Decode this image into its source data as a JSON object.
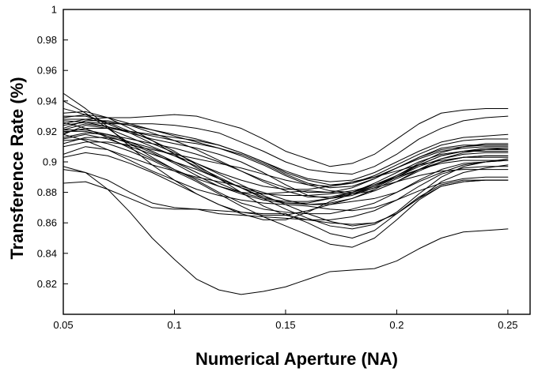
{
  "chart_data": {
    "type": "line",
    "title": "",
    "xlabel": "Numerical Aperture (NA)",
    "ylabel": "Transference Rate (%)",
    "xlim": [
      0.05,
      0.26
    ],
    "ylim": [
      0.8,
      1.0
    ],
    "grid": false,
    "legend": "none",
    "x_ticks": [
      0.05,
      0.1,
      0.15,
      0.2,
      0.25
    ],
    "x_tick_labels": [
      "0.05",
      "0.1",
      "0.15",
      "0.2",
      "0.25"
    ],
    "y_ticks": [
      0.82,
      0.84,
      0.86,
      0.88,
      0.9,
      0.92,
      0.94,
      0.96,
      0.98,
      1.0
    ],
    "y_tick_labels": [
      "0.82",
      "0.84",
      "0.86",
      "0.88",
      "0.9",
      "0.92",
      "0.94",
      "0.96",
      "0.98",
      "1"
    ],
    "x": [
      0.05,
      0.06,
      0.07,
      0.08,
      0.09,
      0.1,
      0.11,
      0.12,
      0.13,
      0.14,
      0.15,
      0.16,
      0.17,
      0.18,
      0.19,
      0.2,
      0.21,
      0.22,
      0.23,
      0.24,
      0.25
    ],
    "series": [
      {
        "values": [
          0.897,
          0.893,
          0.882,
          0.867,
          0.85,
          0.836,
          0.823,
          0.816,
          0.813,
          0.815,
          0.818,
          0.823,
          0.828,
          0.829,
          0.83,
          0.835,
          0.843,
          0.85,
          0.854,
          0.855,
          0.856
        ]
      },
      {
        "values": [
          0.886,
          0.887,
          0.882,
          0.876,
          0.87,
          0.869,
          0.869,
          0.866,
          0.865,
          0.864,
          0.863,
          0.862,
          0.86,
          0.859,
          0.86,
          0.866,
          0.876,
          0.884,
          0.887,
          0.888,
          0.888
        ]
      },
      {
        "values": [
          0.895,
          0.893,
          0.888,
          0.88,
          0.873,
          0.87,
          0.869,
          0.868,
          0.867,
          0.866,
          0.866,
          0.86,
          0.853,
          0.85,
          0.855,
          0.866,
          0.877,
          0.885,
          0.888,
          0.888,
          0.888
        ]
      },
      {
        "values": [
          0.925,
          0.928,
          0.929,
          0.929,
          0.93,
          0.931,
          0.93,
          0.926,
          0.922,
          0.915,
          0.907,
          0.902,
          0.897,
          0.899,
          0.905,
          0.915,
          0.925,
          0.932,
          0.934,
          0.935,
          0.935
        ]
      },
      {
        "values": [
          0.927,
          0.926,
          0.925,
          0.925,
          0.925,
          0.924,
          0.922,
          0.919,
          0.913,
          0.907,
          0.9,
          0.895,
          0.893,
          0.892,
          0.897,
          0.905,
          0.915,
          0.922,
          0.927,
          0.929,
          0.93
        ]
      },
      {
        "values": [
          0.945,
          0.935,
          0.923,
          0.91,
          0.898,
          0.888,
          0.879,
          0.872,
          0.867,
          0.865,
          0.865,
          0.868,
          0.872,
          0.874,
          0.876,
          0.88,
          0.887,
          0.893,
          0.898,
          0.9,
          0.901
        ]
      },
      {
        "values": [
          0.94,
          0.932,
          0.922,
          0.912,
          0.903,
          0.895,
          0.888,
          0.88,
          0.873,
          0.869,
          0.867,
          0.866,
          0.866,
          0.869,
          0.873,
          0.88,
          0.888,
          0.895,
          0.899,
          0.9,
          0.902
        ]
      },
      {
        "values": [
          0.935,
          0.931,
          0.925,
          0.919,
          0.912,
          0.906,
          0.899,
          0.892,
          0.885,
          0.878,
          0.872,
          0.866,
          0.861,
          0.858,
          0.86,
          0.866,
          0.876,
          0.887,
          0.893,
          0.896,
          0.898
        ]
      },
      {
        "values": [
          0.918,
          0.924,
          0.922,
          0.916,
          0.91,
          0.904,
          0.897,
          0.89,
          0.883,
          0.876,
          0.869,
          0.863,
          0.858,
          0.856,
          0.859,
          0.867,
          0.879,
          0.89,
          0.897,
          0.9,
          0.901
        ]
      },
      {
        "values": [
          0.93,
          0.93,
          0.926,
          0.92,
          0.914,
          0.907,
          0.898,
          0.889,
          0.88,
          0.871,
          0.865,
          0.862,
          0.862,
          0.864,
          0.868,
          0.875,
          0.884,
          0.892,
          0.896,
          0.897,
          0.897
        ]
      },
      {
        "values": [
          0.921,
          0.925,
          0.923,
          0.919,
          0.915,
          0.912,
          0.909,
          0.905,
          0.9,
          0.893,
          0.885,
          0.878,
          0.876,
          0.878,
          0.883,
          0.89,
          0.898,
          0.904,
          0.907,
          0.908,
          0.908
        ]
      },
      {
        "values": [
          0.924,
          0.926,
          0.923,
          0.92,
          0.917,
          0.914,
          0.912,
          0.909,
          0.905,
          0.899,
          0.892,
          0.886,
          0.883,
          0.884,
          0.889,
          0.896,
          0.903,
          0.909,
          0.911,
          0.911,
          0.911
        ]
      },
      {
        "values": [
          0.919,
          0.922,
          0.922,
          0.92,
          0.918,
          0.916,
          0.914,
          0.911,
          0.906,
          0.9,
          0.894,
          0.889,
          0.887,
          0.888,
          0.893,
          0.9,
          0.907,
          0.913,
          0.916,
          0.917,
          0.918
        ]
      },
      {
        "values": [
          0.928,
          0.928,
          0.926,
          0.924,
          0.921,
          0.918,
          0.915,
          0.911,
          0.906,
          0.9,
          0.893,
          0.888,
          0.885,
          0.886,
          0.891,
          0.898,
          0.905,
          0.911,
          0.914,
          0.915,
          0.915
        ]
      },
      {
        "values": [
          0.905,
          0.91,
          0.908,
          0.903,
          0.898,
          0.894,
          0.89,
          0.887,
          0.884,
          0.88,
          0.875,
          0.872,
          0.872,
          0.876,
          0.882,
          0.889,
          0.895,
          0.9,
          0.903,
          0.903,
          0.903
        ]
      },
      {
        "values": [
          0.915,
          0.918,
          0.915,
          0.91,
          0.905,
          0.9,
          0.895,
          0.889,
          0.883,
          0.877,
          0.873,
          0.873,
          0.876,
          0.88,
          0.885,
          0.89,
          0.895,
          0.899,
          0.901,
          0.901,
          0.901
        ]
      },
      {
        "values": [
          0.912,
          0.916,
          0.916,
          0.913,
          0.909,
          0.904,
          0.899,
          0.893,
          0.888,
          0.884,
          0.882,
          0.882,
          0.884,
          0.887,
          0.89,
          0.894,
          0.898,
          0.901,
          0.903,
          0.904,
          0.904
        ]
      },
      {
        "values": [
          0.92,
          0.92,
          0.917,
          0.912,
          0.906,
          0.899,
          0.891,
          0.884,
          0.88,
          0.879,
          0.88,
          0.881,
          0.88,
          0.879,
          0.881,
          0.887,
          0.895,
          0.902,
          0.906,
          0.908,
          0.909
        ]
      },
      {
        "values": [
          0.926,
          0.922,
          0.916,
          0.909,
          0.902,
          0.895,
          0.889,
          0.884,
          0.879,
          0.875,
          0.873,
          0.872,
          0.873,
          0.876,
          0.881,
          0.887,
          0.894,
          0.9,
          0.903,
          0.904,
          0.904
        ]
      },
      {
        "values": [
          0.91,
          0.913,
          0.913,
          0.911,
          0.908,
          0.905,
          0.902,
          0.899,
          0.896,
          0.892,
          0.888,
          0.885,
          0.884,
          0.886,
          0.89,
          0.896,
          0.902,
          0.907,
          0.909,
          0.91,
          0.91
        ]
      },
      {
        "values": [
          0.932,
          0.933,
          0.929,
          0.922,
          0.914,
          0.905,
          0.896,
          0.889,
          0.883,
          0.879,
          0.878,
          0.878,
          0.879,
          0.881,
          0.885,
          0.891,
          0.898,
          0.904,
          0.907,
          0.909,
          0.909
        ]
      },
      {
        "values": [
          0.918,
          0.914,
          0.908,
          0.901,
          0.894,
          0.888,
          0.882,
          0.878,
          0.875,
          0.873,
          0.872,
          0.871,
          0.869,
          0.868,
          0.87,
          0.875,
          0.881,
          0.886,
          0.889,
          0.89,
          0.89
        ]
      },
      {
        "values": [
          0.922,
          0.927,
          0.927,
          0.924,
          0.919,
          0.914,
          0.908,
          0.901,
          0.894,
          0.887,
          0.881,
          0.877,
          0.877,
          0.88,
          0.886,
          0.893,
          0.9,
          0.905,
          0.907,
          0.907,
          0.907
        ]
      },
      {
        "values": [
          0.903,
          0.906,
          0.904,
          0.899,
          0.893,
          0.886,
          0.879,
          0.872,
          0.866,
          0.862,
          0.862,
          0.867,
          0.874,
          0.879,
          0.883,
          0.887,
          0.891,
          0.894,
          0.895,
          0.895,
          0.895
        ]
      },
      {
        "values": [
          0.916,
          0.919,
          0.918,
          0.915,
          0.912,
          0.909,
          0.905,
          0.9,
          0.894,
          0.888,
          0.883,
          0.88,
          0.88,
          0.883,
          0.889,
          0.896,
          0.903,
          0.908,
          0.91,
          0.911,
          0.911
        ]
      },
      {
        "values": [
          0.914,
          0.915,
          0.912,
          0.907,
          0.901,
          0.894,
          0.887,
          0.879,
          0.871,
          0.864,
          0.858,
          0.852,
          0.846,
          0.844,
          0.85,
          0.862,
          0.875,
          0.884,
          0.887,
          0.888,
          0.888
        ]
      },
      {
        "values": [
          0.929,
          0.931,
          0.929,
          0.925,
          0.921,
          0.917,
          0.913,
          0.909,
          0.904,
          0.898,
          0.891,
          0.885,
          0.881,
          0.88,
          0.884,
          0.891,
          0.899,
          0.906,
          0.91,
          0.912,
          0.912
        ]
      },
      {
        "values": [
          0.921,
          0.921,
          0.918,
          0.913,
          0.907,
          0.9,
          0.893,
          0.886,
          0.88,
          0.876,
          0.874,
          0.874,
          0.876,
          0.879,
          0.884,
          0.89,
          0.897,
          0.902,
          0.905,
          0.906,
          0.906
        ]
      }
    ]
  }
}
